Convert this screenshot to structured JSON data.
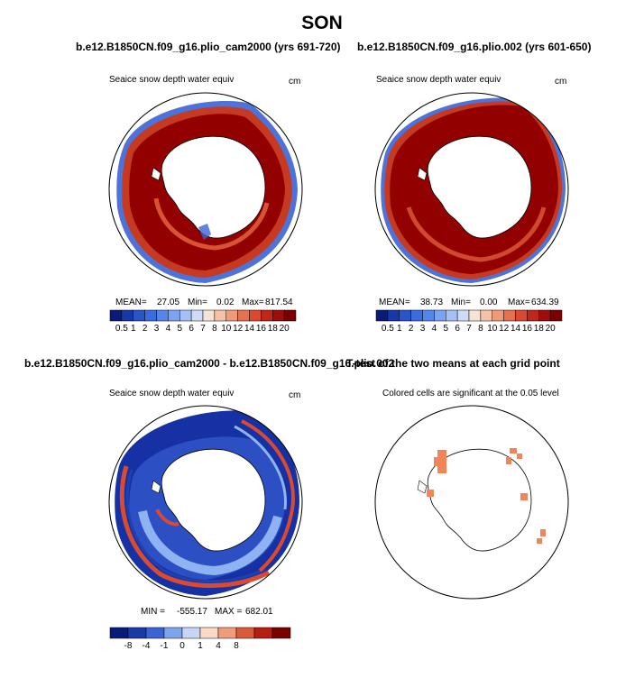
{
  "title": "SON",
  "panels": {
    "top_left": {
      "title": "b.e12.B1850CN.f09_g16.plio_cam2000 (yrs 691-720)",
      "variable": "Seaice snow depth water equiv",
      "units": "cm",
      "stats": {
        "mean_label": "MEAN=",
        "mean": "27.05",
        "min_label": "Min=",
        "min": "0.02",
        "max_label": "Max=",
        "max": "817.54"
      }
    },
    "top_right": {
      "title": "b.e12.B1850CN.f09_g16.plio.002 (yrs 601-650)",
      "variable": "Seaice snow depth water equiv",
      "units": "cm",
      "stats": {
        "mean_label": "MEAN=",
        "mean": "38.73",
        "min_label": "Min=",
        "min": "0.00",
        "max_label": "Max=",
        "max": "634.39"
      }
    },
    "bottom_left": {
      "title": "b.e12.B1850CN.f09_g16.plio_cam2000 - b.e12.B1850CN.f09_g16.plio.002",
      "variable": "Seaice snow depth water equiv",
      "units": "cm",
      "stats": {
        "min_label": "MIN =",
        "min": "-555.17",
        "max_label": "MAX =",
        "max": "682.01"
      }
    },
    "bottom_right": {
      "title": "T-test of the two means at each grid point",
      "caption": "Colored cells are significant at the 0.05 level"
    }
  },
  "colorbars": {
    "abs": {
      "labels": [
        "0.5",
        "1",
        "2",
        "3",
        "4",
        "5",
        "6",
        "7",
        "8",
        "10",
        "12",
        "14",
        "16",
        "18",
        "20"
      ],
      "colors": [
        "#0a1a78",
        "#1738a8",
        "#2a55c8",
        "#3a6ce0",
        "#5486ea",
        "#7aa3f0",
        "#a4c0f5",
        "#cfdcf8",
        "#f7e2d6",
        "#f5c2a8",
        "#ef9a78",
        "#e6704f",
        "#d94a30",
        "#c0261a",
        "#9e0c0c",
        "#7a0000"
      ]
    },
    "diff": {
      "labels": [
        "-8",
        "-4",
        "-1",
        "0",
        "1",
        "4",
        "8"
      ],
      "colors": [
        "#0a1a78",
        "#1b3aa6",
        "#3c63d4",
        "#7ea4ee",
        "#c7d6f6",
        "#f9d9c8",
        "#ef9d7c",
        "#da5a3a",
        "#b61e14",
        "#7a0000"
      ]
    }
  },
  "colors": {
    "ice_red": "#930000",
    "ice_red_mid": "#c63a22",
    "ice_orange": "#e8683f",
    "ice_blue": "#3a64d6",
    "diff_blue": "#1531a3",
    "diff_light": "#8fb2f2",
    "sig_orange": "#f2845a"
  }
}
